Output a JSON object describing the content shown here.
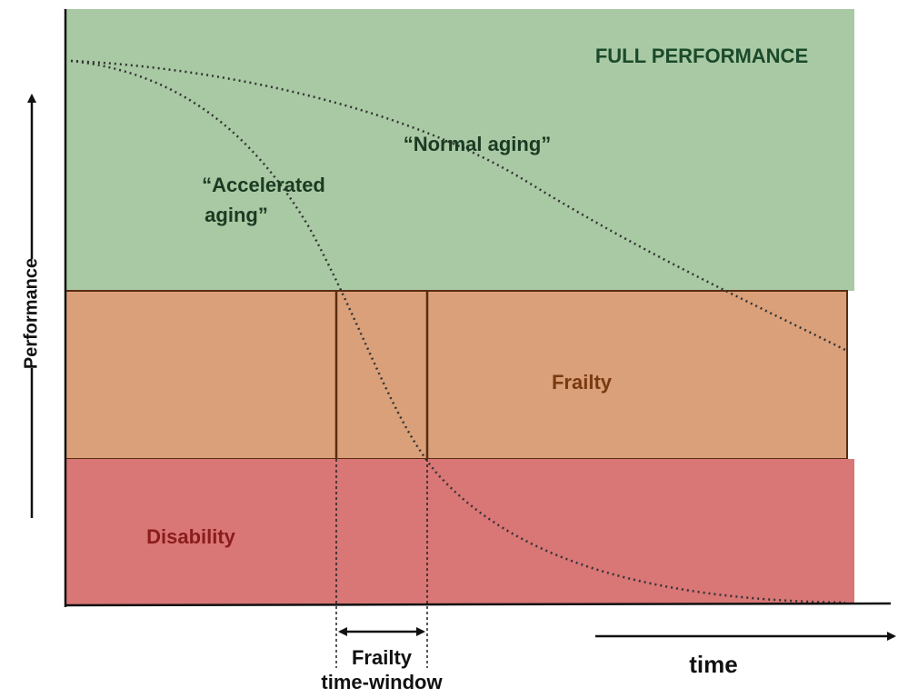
{
  "zones": {
    "full": "FULL PERFORMANCE",
    "frailty": "Frailty",
    "disability": "Disability"
  },
  "curves": {
    "normal": "“Normal aging”",
    "accelerated_line1": "“Accelerated",
    "accelerated_line2": "aging”"
  },
  "axes": {
    "y_label": "Performance",
    "x_label": "time"
  },
  "window": {
    "line1": "Frailty",
    "line2": "time-window"
  }
}
